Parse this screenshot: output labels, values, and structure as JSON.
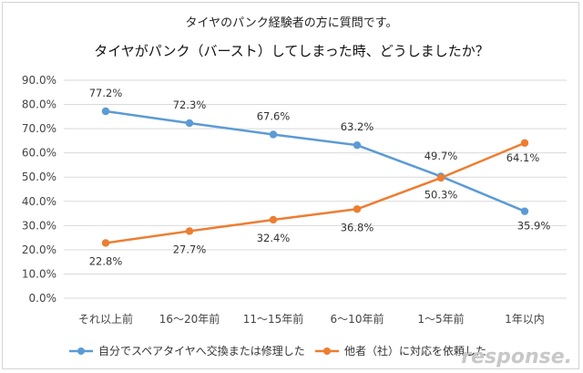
{
  "chart_data": {
    "type": "line",
    "subtitle": "タイヤのパンク経験者の方に質問です。",
    "title": "タイヤがパンク（バースト）してしまった時、どうしましたか？",
    "categories": [
      "それ以上前",
      "16～20年前",
      "11～15年前",
      "6～10年前",
      "1～5年前",
      "1年以内"
    ],
    "ylim": [
      0,
      90
    ],
    "yticks": [
      "0.0%",
      "10.0%",
      "20.0%",
      "30.0%",
      "40.0%",
      "50.0%",
      "60.0%",
      "70.0%",
      "80.0%",
      "90.0%"
    ],
    "series": [
      {
        "name": "自分でスペアタイヤへ交換または修理した",
        "color": "#5b9bd5",
        "values": [
          77.2,
          72.3,
          67.6,
          63.2,
          50.3,
          35.9
        ],
        "labels": [
          "77.2%",
          "72.3%",
          "67.6%",
          "63.2%",
          "50.3%",
          "35.9%"
        ]
      },
      {
        "name": "他者（社）に対応を依頼した",
        "color": "#ed7d31",
        "values": [
          22.8,
          27.7,
          32.4,
          36.8,
          49.7,
          64.1
        ],
        "labels": [
          "22.8%",
          "27.7%",
          "32.4%",
          "36.8%",
          "49.7%",
          "64.1%"
        ]
      }
    ],
    "gridlines": true,
    "legend_position": "bottom"
  },
  "watermark": "response."
}
